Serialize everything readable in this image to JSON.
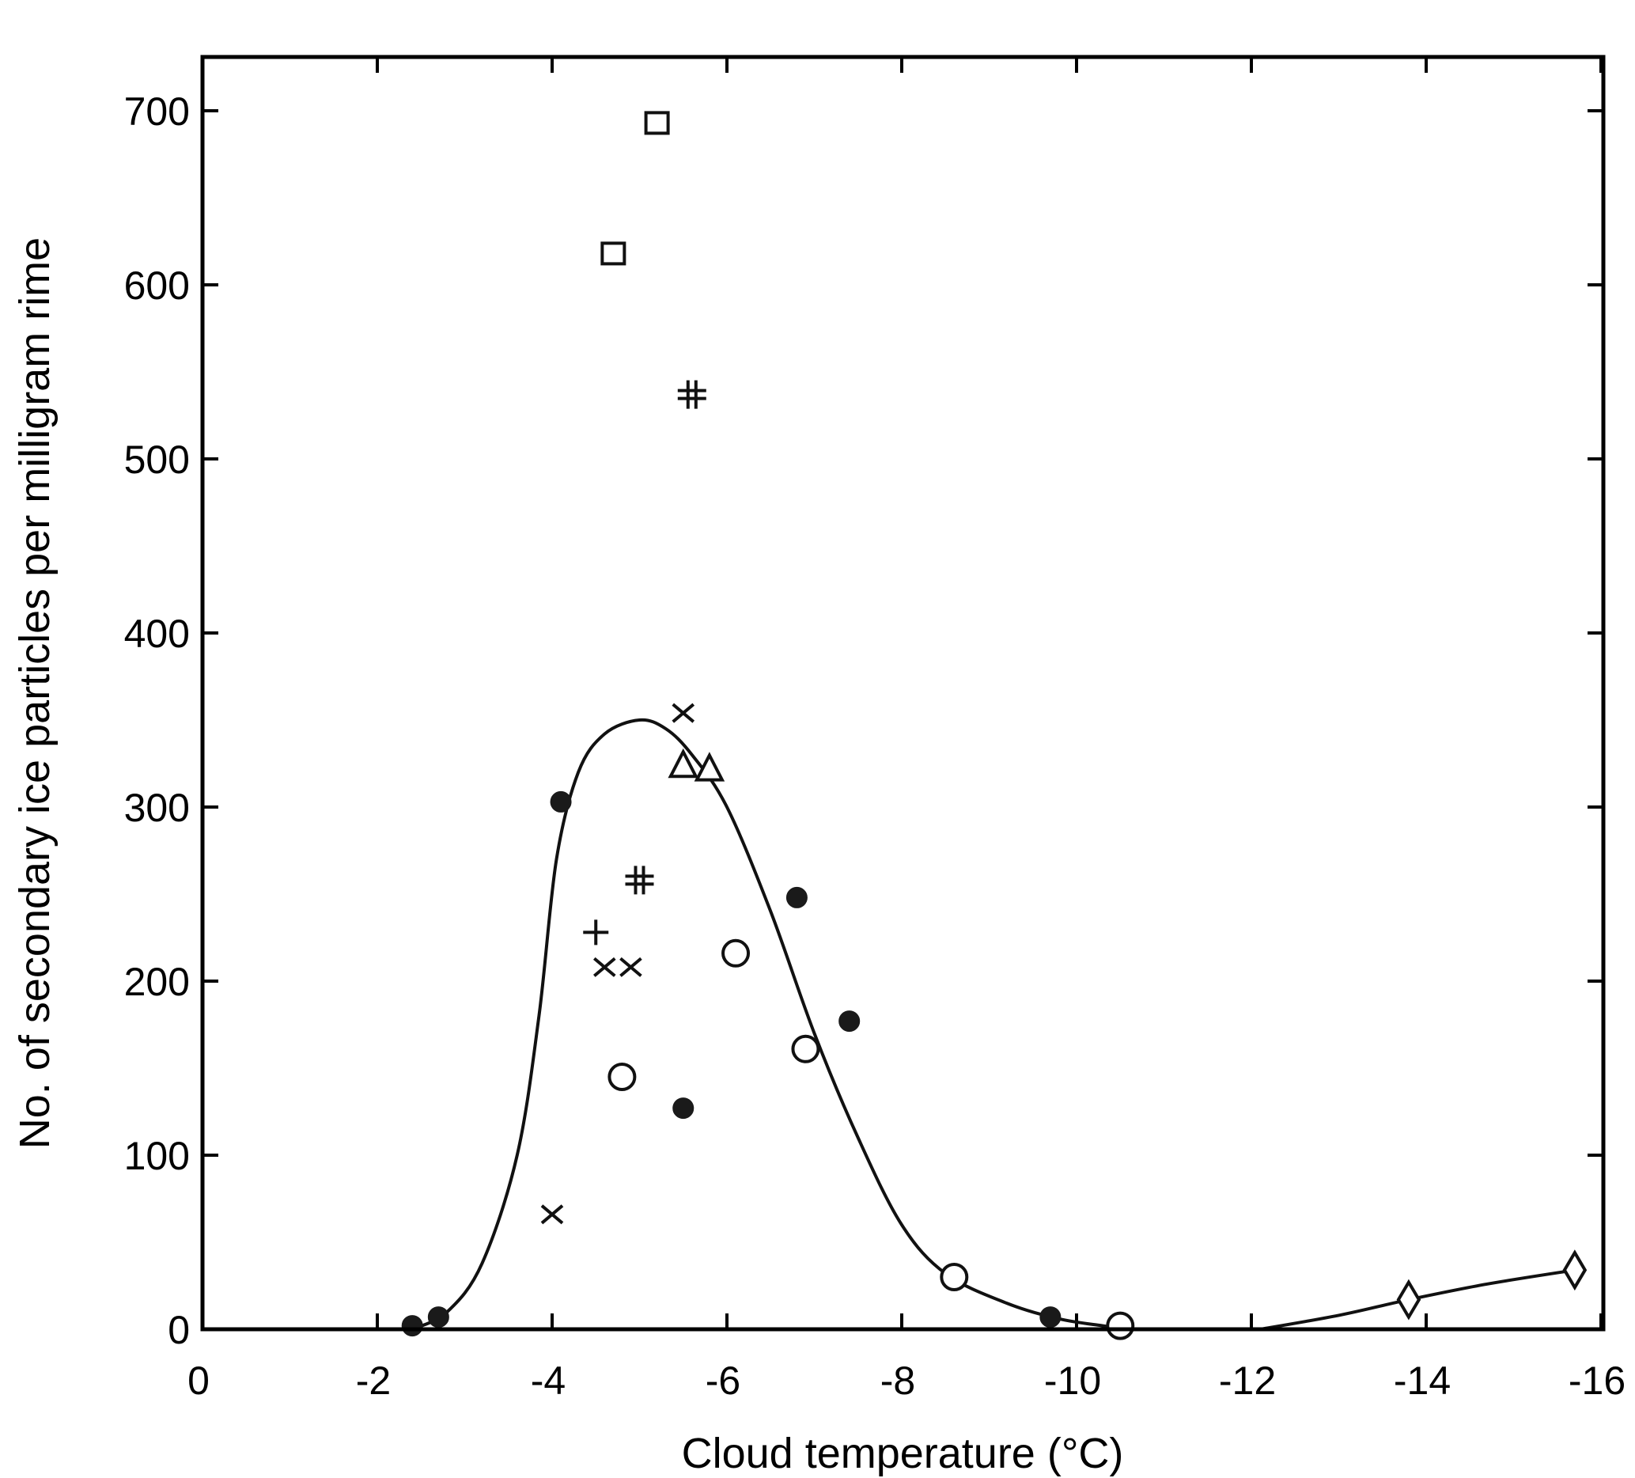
{
  "chart_data": {
    "type": "scatter",
    "title": "",
    "xlabel": "Cloud temperature (°C)",
    "ylabel": "No. of secondary ice particles per milligram rime",
    "xlim": [
      0,
      -16
    ],
    "ylim": [
      0,
      700
    ],
    "x_ticks": [
      "0",
      "-2",
      "-4",
      "-6",
      "-8",
      "-10",
      "-12",
      "-14",
      "-16"
    ],
    "y_ticks": [
      "0",
      "100",
      "200",
      "300",
      "400",
      "500",
      "600",
      "700"
    ],
    "x_tick_values": [
      0,
      -2,
      -4,
      -6,
      -8,
      -10,
      -12,
      -14,
      -16
    ],
    "y_tick_values": [
      0,
      100,
      200,
      300,
      400,
      500,
      600,
      700
    ],
    "grid": false,
    "legend": "none",
    "series": [
      {
        "marker": "filled-circle",
        "points": [
          {
            "x": -2.4,
            "y": 2
          },
          {
            "x": -2.7,
            "y": 7
          },
          {
            "x": -4.1,
            "y": 303
          },
          {
            "x": -5.5,
            "y": 127
          },
          {
            "x": -6.8,
            "y": 248
          },
          {
            "x": -7.4,
            "y": 177
          },
          {
            "x": -9.7,
            "y": 7
          }
        ]
      },
      {
        "marker": "open-circle",
        "points": [
          {
            "x": -4.8,
            "y": 145
          },
          {
            "x": -6.1,
            "y": 216
          },
          {
            "x": -6.9,
            "y": 161
          },
          {
            "x": -8.6,
            "y": 30
          },
          {
            "x": -10.5,
            "y": 2
          }
        ]
      },
      {
        "marker": "open-square",
        "points": [
          {
            "x": -4.7,
            "y": 618
          },
          {
            "x": -5.2,
            "y": 693
          }
        ]
      },
      {
        "marker": "double-cross",
        "points": [
          {
            "x": -5.6,
            "y": 537
          },
          {
            "x": -5.0,
            "y": 258
          }
        ]
      },
      {
        "marker": "plus",
        "points": [
          {
            "x": -4.5,
            "y": 228
          }
        ]
      },
      {
        "marker": "x-cross",
        "points": [
          {
            "x": -5.5,
            "y": 354
          },
          {
            "x": -4.6,
            "y": 208
          },
          {
            "x": -4.9,
            "y": 208
          },
          {
            "x": -4.0,
            "y": 66
          }
        ]
      },
      {
        "marker": "open-triangle",
        "points": [
          {
            "x": -5.5,
            "y": 324
          },
          {
            "x": -5.8,
            "y": 322
          }
        ]
      },
      {
        "marker": "open-diamond",
        "points": [
          {
            "x": -13.8,
            "y": 17
          },
          {
            "x": -15.7,
            "y": 34
          }
        ]
      }
    ],
    "curves": [
      {
        "style": "solid",
        "points": [
          [
            -2.4,
            0
          ],
          [
            -2.8,
            10
          ],
          [
            -3.2,
            38
          ],
          [
            -3.6,
            100
          ],
          [
            -3.85,
            180
          ],
          [
            -4.05,
            270
          ],
          [
            -4.3,
            320
          ],
          [
            -4.6,
            342
          ],
          [
            -5.0,
            350
          ],
          [
            -5.3,
            345
          ],
          [
            -5.6,
            330
          ],
          [
            -6.0,
            300
          ],
          [
            -6.5,
            240
          ],
          [
            -7.0,
            170
          ],
          [
            -7.5,
            110
          ],
          [
            -8.0,
            60
          ],
          [
            -8.5,
            32
          ],
          [
            -9.2,
            15
          ],
          [
            -9.8,
            6
          ],
          [
            -10.3,
            2
          ],
          [
            -10.6,
            0
          ]
        ]
      },
      {
        "style": "solid",
        "points": [
          [
            -12.1,
            0
          ],
          [
            -13.0,
            8
          ],
          [
            -13.8,
            17
          ],
          [
            -14.7,
            26
          ],
          [
            -15.7,
            34
          ]
        ]
      }
    ]
  }
}
